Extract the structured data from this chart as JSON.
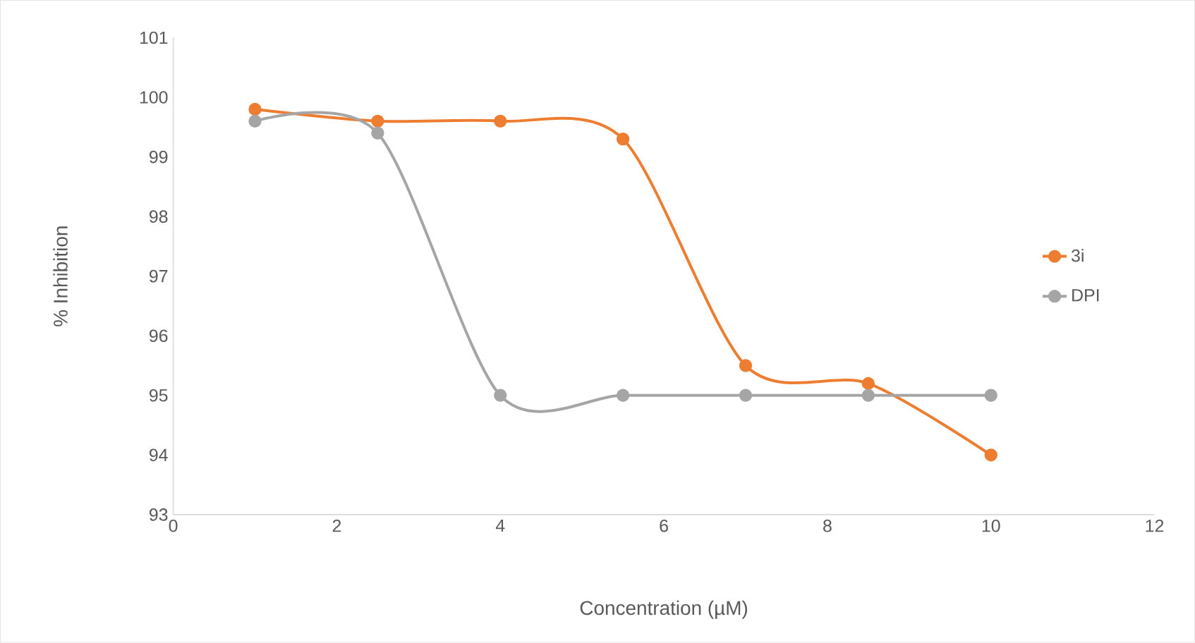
{
  "chart_data": {
    "type": "line",
    "xlabel": "Concentration (µM)",
    "ylabel": "% Inhibition",
    "x": [
      1,
      2.5,
      4,
      5.5,
      7,
      8.5,
      10
    ],
    "series": [
      {
        "name": "3i",
        "color": "#ed7d31",
        "values": [
          99.8,
          99.6,
          99.6,
          99.3,
          95.5,
          95.2,
          94.0
        ]
      },
      {
        "name": "DPI",
        "color": "#a5a5a5",
        "values": [
          99.6,
          99.4,
          95,
          95,
          95,
          95,
          95
        ]
      }
    ],
    "xlim": [
      0,
      12
    ],
    "ylim": [
      93,
      101
    ],
    "xticks": [
      0,
      2,
      4,
      6,
      8,
      10,
      12
    ],
    "yticks": [
      93,
      94,
      95,
      96,
      97,
      98,
      99,
      100,
      101
    ],
    "grid": false,
    "legend": "right",
    "marker": "circle",
    "line_style": "solid"
  }
}
